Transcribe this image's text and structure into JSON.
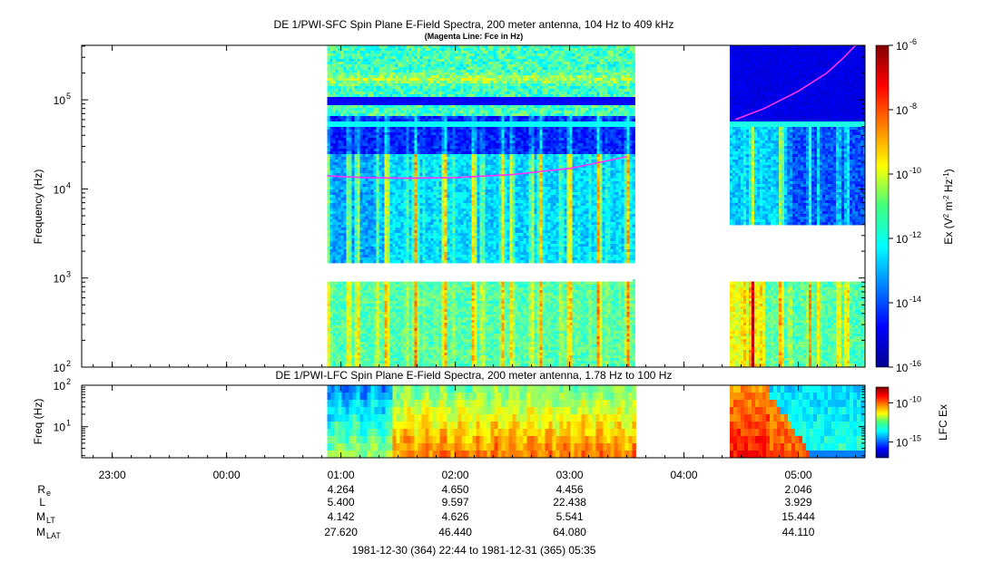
{
  "chart_data": [
    {
      "type": "heatmap",
      "title": "DE 1/PWI-SFC  Spin Plane E-Field Spectra, 200 meter antenna, 104 Hz to 409 kHz",
      "subtitle": "(Magenta Line: Fce in Hz)",
      "ylabel": "Frequency (Hz)",
      "y_scale": "log",
      "ylim": [
        100,
        409000
      ],
      "y_ticks": [
        {
          "base": "10",
          "exp": "2"
        },
        {
          "base": "10",
          "exp": "3"
        },
        {
          "base": "10",
          "exp": "4"
        },
        {
          "base": "10",
          "exp": "5"
        }
      ],
      "colorbar": {
        "label_main": "Ex (V",
        "label_parts": [
          "2",
          " m",
          "-2",
          " Hz",
          "-1",
          ")"
        ],
        "scale": "log",
        "range": [
          1e-16,
          1e-06
        ],
        "ticks": [
          {
            "base": "10",
            "exp": "-6"
          },
          {
            "base": "10",
            "exp": "-8"
          },
          {
            "base": "10",
            "exp": "-10"
          },
          {
            "base": "10",
            "exp": "-12"
          },
          {
            "base": "10",
            "exp": "-14"
          },
          {
            "base": "10",
            "exp": "-16"
          }
        ]
      },
      "data_segments_hours": [
        [
          0.88,
          3.55
        ],
        [
          4.4,
          5.6
        ]
      ],
      "fce_line": {
        "color": "#ff33ff",
        "segments": [
          [
            [
              0.88,
              14000
            ],
            [
              1.2,
              13400
            ],
            [
              1.6,
              13200
            ],
            [
              2.0,
              13400
            ],
            [
              2.5,
              14500
            ],
            [
              3.0,
              17000
            ],
            [
              3.5,
              23000
            ]
          ],
          [
            [
              4.45,
              60000
            ],
            [
              4.7,
              80000
            ],
            [
              5.0,
              125000
            ],
            [
              5.25,
              200000
            ],
            [
              5.4,
              300000
            ],
            [
              5.5,
              409000
            ]
          ]
        ]
      }
    },
    {
      "type": "heatmap",
      "title": "DE 1/PWI-LFC  Spin Plane E-Field Spectra, 200 meter antenna, 1.78 Hz to 100 Hz",
      "ylabel": "Freq (Hz)",
      "y_scale": "log",
      "ylim": [
        1.78,
        100
      ],
      "y_ticks": [
        {
          "base": "10",
          "exp": "1"
        },
        {
          "base": "10",
          "exp": "2"
        }
      ],
      "colorbar": {
        "label": "LFC Ex",
        "scale": "log",
        "range": [
          1e-17,
          1e-08
        ],
        "ticks": [
          {
            "base": "10",
            "exp": "-10"
          },
          {
            "base": "10",
            "exp": "-15"
          }
        ]
      },
      "data_segments_hours": [
        [
          0.88,
          3.55
        ],
        [
          4.4,
          5.6
        ]
      ]
    }
  ],
  "time_axis": {
    "start_hour": -1.267,
    "end_hour": 5.583,
    "ticks": [
      {
        "hour": -1,
        "label": "23:00"
      },
      {
        "hour": 0,
        "label": "00:00"
      },
      {
        "hour": 1,
        "label": "01:00"
      },
      {
        "hour": 2,
        "label": "02:00"
      },
      {
        "hour": 3,
        "label": "03:00"
      },
      {
        "hour": 4,
        "label": "04:00"
      },
      {
        "hour": 5,
        "label": "05:00"
      }
    ]
  },
  "ephemeris": {
    "rows": [
      {
        "label": "R",
        "sub": "e",
        "values": {
          "1": "4.264",
          "2": "4.650",
          "3": "4.456",
          "5": "2.046"
        }
      },
      {
        "label": "L",
        "sub": "",
        "values": {
          "1": "5.400",
          "2": "9.597",
          "3": "22.438",
          "5": "3.929"
        }
      },
      {
        "label": "M",
        "sub": "LT",
        "values": {
          "1": "4.142",
          "2": "4.626",
          "3": "5.541",
          "5": "15.444"
        }
      },
      {
        "label": "M",
        "sub": "LAT",
        "values": {
          "1": "27.620",
          "2": "46.440",
          "3": "64.080",
          "5": "44.110"
        }
      }
    ]
  },
  "time_range": "1981-12-30 (364) 22:44 to 1981-12-31 (365) 05:35"
}
